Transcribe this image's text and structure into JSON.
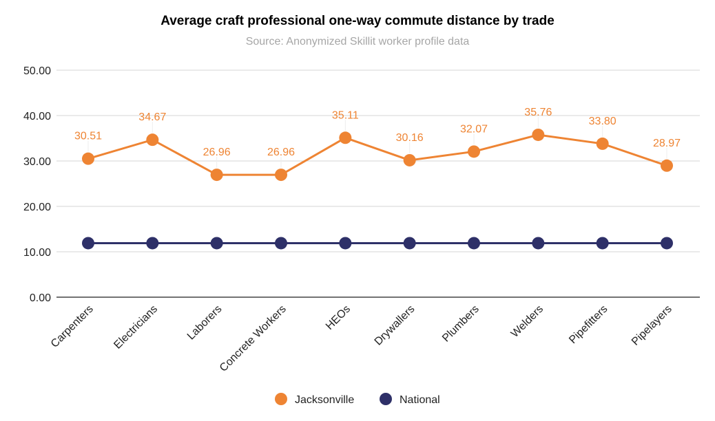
{
  "chart_data": {
    "type": "line",
    "title": "Average craft professional one-way commute distance by trade",
    "subtitle": "Source: Anonymized Skillit worker profile data",
    "xlabel": "",
    "ylabel": "",
    "ylim": [
      0,
      50
    ],
    "yticks": [
      "0.00",
      "10.00",
      "20.00",
      "30.00",
      "40.00",
      "50.00"
    ],
    "grid": true,
    "legend_position": "bottom",
    "categories": [
      "Carpenters",
      "Electricians",
      "Laborers",
      "Concrete Workers",
      "HEOs",
      "Drywallers",
      "Plumbers",
      "Welders",
      "Pipefitters",
      "Pipelayers"
    ],
    "series": [
      {
        "name": "Jacksonville",
        "color": "#ee8433",
        "values": [
          30.51,
          34.67,
          26.96,
          26.96,
          35.11,
          30.16,
          32.07,
          35.76,
          33.8,
          28.97
        ],
        "labels": [
          "30.51",
          "34.67",
          "26.96",
          "26.96",
          "35.11",
          "30.16",
          "32.07",
          "35.76",
          "33.80",
          "28.97"
        ]
      },
      {
        "name": "National",
        "color": "#2e3068",
        "values": [
          11.9,
          11.9,
          11.9,
          11.9,
          11.9,
          11.9,
          11.9,
          11.9,
          11.9,
          11.9
        ]
      }
    ]
  }
}
